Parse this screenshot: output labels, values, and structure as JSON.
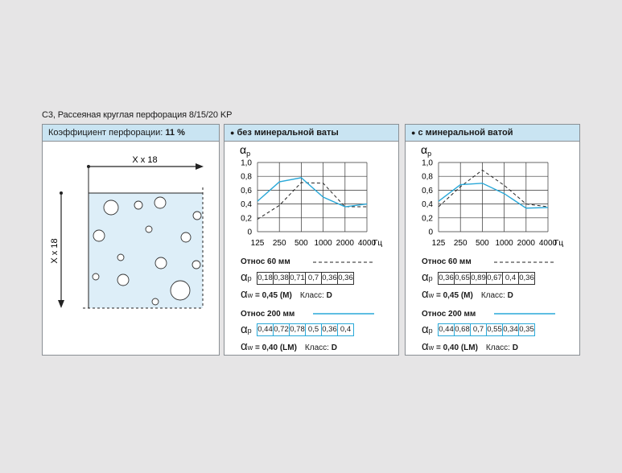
{
  "title": "C3, Рассеяная круглая перфорация 8/15/20 KP",
  "perforation": {
    "label": "Коэффициент перфорации:",
    "value": "11 %",
    "dim_x": "X x 18",
    "dim_y": "X x 18"
  },
  "colors": {
    "header_bg": "#c9e4f2",
    "blue_line": "#29a8d8",
    "dashed_line": "#222222",
    "hole_fill": "#ffffff",
    "tile_fill": "#ddeef8"
  },
  "chart_data": [
    {
      "type": "line",
      "title": "без минеральной ваты",
      "ylabel": "αp",
      "xlabel": "Гц",
      "categories": [
        "125",
        "250",
        "500",
        "1000",
        "2000",
        "4000"
      ],
      "yticks": [
        "0",
        "0,2",
        "0,4",
        "0,6",
        "0,8",
        "1,0"
      ],
      "ylim": [
        0,
        1.0
      ],
      "grid": true,
      "series": [
        {
          "name": "Относ 60 мм",
          "style": "dashed",
          "values": [
            0.18,
            0.38,
            0.71,
            0.7,
            0.36,
            0.36
          ],
          "labels": [
            "0,18",
            "0,38",
            "0,71",
            "0,7",
            "0,36",
            "0,36"
          ],
          "rating": "= 0,45 (M)",
          "klass": "D"
        },
        {
          "name": "Относ 200 мм",
          "style": "solid-blue",
          "values": [
            0.44,
            0.72,
            0.78,
            0.5,
            0.36,
            0.4
          ],
          "labels": [
            "0,44",
            "0,72",
            "0,78",
            "0,5",
            "0,36",
            "0,4"
          ],
          "rating": "= 0,40 (LM)",
          "klass": "D"
        }
      ]
    },
    {
      "type": "line",
      "title": "с минеральной ватой",
      "ylabel": "αp",
      "xlabel": "Гц",
      "categories": [
        "125",
        "250",
        "500",
        "1000",
        "2000",
        "4000"
      ],
      "yticks": [
        "0",
        "0,2",
        "0,4",
        "0,6",
        "0,8",
        "1,0"
      ],
      "ylim": [
        0,
        1.0
      ],
      "grid": true,
      "series": [
        {
          "name": "Относ 60 мм",
          "style": "dashed",
          "values": [
            0.36,
            0.65,
            0.89,
            0.67,
            0.4,
            0.36
          ],
          "labels": [
            "0,36",
            "0,65",
            "0,89",
            "0,67",
            "0,4",
            "0,36"
          ],
          "rating": "= 0,45 (M)",
          "klass": "D"
        },
        {
          "name": "Относ 200 мм",
          "style": "solid-blue",
          "values": [
            0.44,
            0.68,
            0.7,
            0.55,
            0.34,
            0.35
          ],
          "labels": [
            "0,44",
            "0,68",
            "0,7",
            "0,55",
            "0,34",
            "0,35"
          ],
          "rating": "= 0,40 (LM)",
          "klass": "D"
        }
      ]
    }
  ],
  "labels": {
    "alpha": "α",
    "sub_p": "p",
    "sub_w": "w",
    "klass_label": "Класс:"
  }
}
